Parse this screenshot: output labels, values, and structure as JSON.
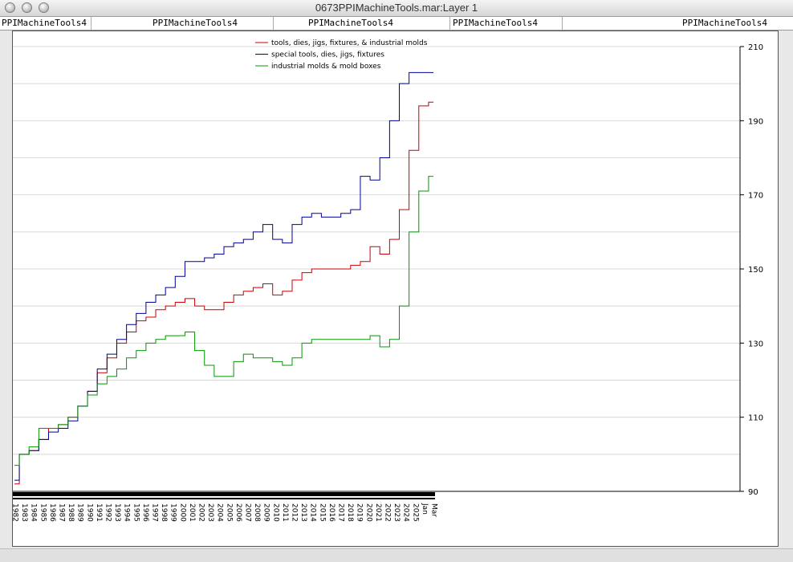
{
  "window": {
    "title": "0673PPIMachineTools.mar:Layer 1",
    "tabs": [
      "PPIMachineTools4",
      "PPIMachineTools4",
      "PPIMachineTools4",
      "PPIMachineTools4",
      "PPIMachineTools4"
    ]
  },
  "chart_data": {
    "type": "line",
    "title": "",
    "xlabel": "",
    "ylabel": "",
    "ylim": [
      90,
      210
    ],
    "y_ticks": [
      90,
      110,
      130,
      150,
      170,
      190,
      210
    ],
    "y_axis_side": "right",
    "grid": "horizontal",
    "legend_placement": "top-center",
    "x_tick_labels": [
      "1982",
      "1983",
      "1984",
      "1985",
      "1986",
      "1987",
      "1988",
      "1989",
      "1990",
      "1991",
      "1992",
      "1993",
      "1994",
      "1995",
      "1996",
      "1997",
      "1998",
      "1999",
      "2000",
      "2001",
      "2002",
      "2003",
      "2004",
      "2005",
      "2006",
      "2007",
      "2008",
      "2009",
      "2010",
      "2011",
      "2012",
      "2013",
      "2014",
      "2015",
      "2016",
      "2017",
      "2018",
      "2019",
      "2020",
      "2021",
      "2022",
      "2023",
      "2024",
      "2025",
      "Jan",
      "Mar"
    ],
    "x": [
      1982,
      1983,
      1984,
      1985,
      1986,
      1987,
      1988,
      1989,
      1990,
      1991,
      1992,
      1993,
      1994,
      1995,
      1996,
      1997,
      1998,
      1999,
      2000,
      2001,
      2002,
      2003,
      2004,
      2005,
      2006,
      2007,
      2008,
      2009,
      2010,
      2011,
      2012,
      2013,
      2014,
      2015,
      2016,
      2017,
      2018,
      2019,
      2020,
      2021,
      2022,
      2023,
      2024,
      2025
    ],
    "series": [
      {
        "name": "tools, dies, jigs, fixtures, & industrial molds",
        "color": "#cc0000",
        "values": [
          92,
          100,
          101,
          104,
          107,
          108,
          110,
          113,
          117,
          122,
          126,
          130,
          133,
          136,
          137,
          139,
          140,
          141,
          142,
          140,
          139,
          139,
          141,
          143,
          144,
          145,
          146,
          143,
          144,
          147,
          149,
          150,
          150,
          150,
          150,
          151,
          152,
          156,
          154,
          158,
          166,
          182,
          194,
          195
        ]
      },
      {
        "name": "special tools, dies, jigs, fixtures",
        "color": "#000099",
        "values": [
          93,
          100,
          101,
          104,
          106,
          107,
          109,
          113,
          117,
          123,
          127,
          131,
          135,
          138,
          141,
          143,
          145,
          148,
          152,
          152,
          153,
          154,
          156,
          157,
          158,
          160,
          162,
          158,
          157,
          162,
          164,
          165,
          164,
          164,
          165,
          166,
          175,
          174,
          180,
          190,
          200,
          203,
          203,
          203
        ]
      },
      {
        "name": "industrial molds & mold boxes",
        "color": "#009900",
        "values": [
          97,
          100,
          102,
          107,
          107,
          108,
          110,
          113,
          116,
          119,
          121,
          123,
          126,
          128,
          130,
          131,
          132,
          132,
          133,
          128,
          124,
          121,
          121,
          125,
          127,
          126,
          126,
          125,
          124,
          126,
          130,
          131,
          131,
          131,
          131,
          131,
          131,
          132,
          129,
          131,
          140,
          160,
          171,
          175
        ]
      }
    ]
  }
}
